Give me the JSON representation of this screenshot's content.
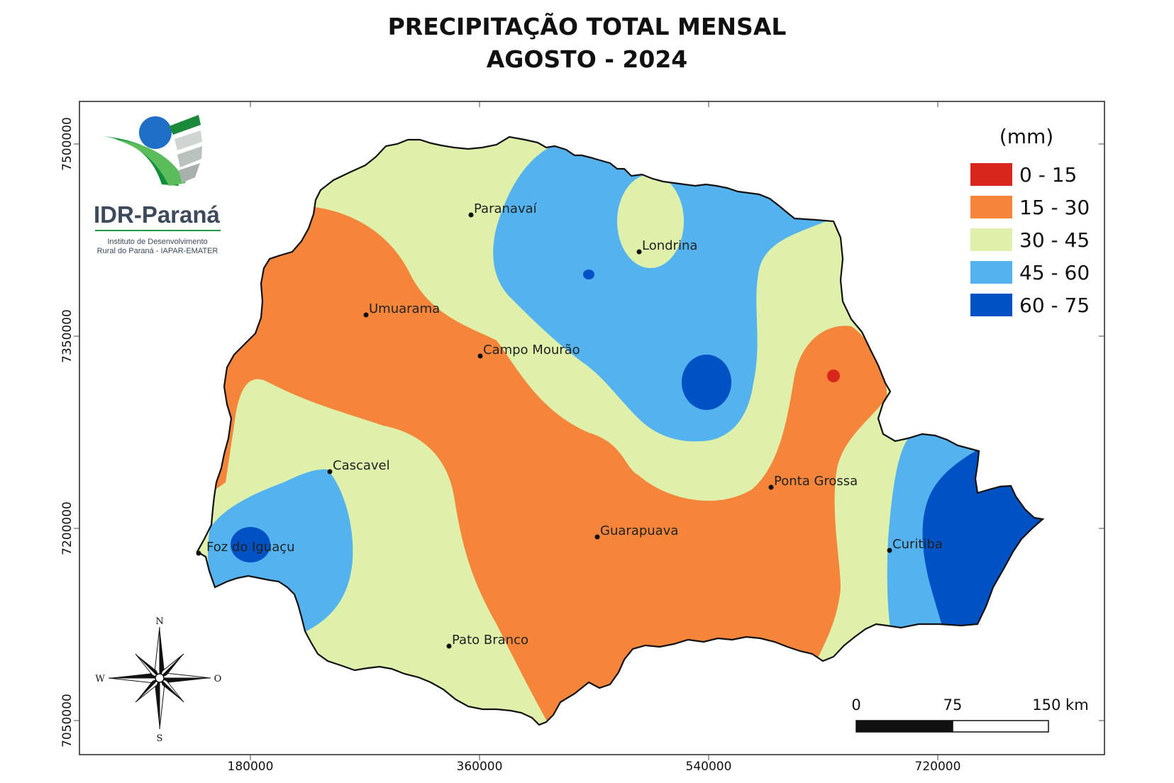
{
  "title": {
    "line1": "PRECIPITAÇÃO TOTAL MENSAL",
    "line2": "AGOSTO - 2024"
  },
  "logo": {
    "name": "IDR-Paraná",
    "subtitle_line1": "Instituto de Desenvolvimento",
    "subtitle_line2": "Rural do Paraná - IAPAR-EMATER"
  },
  "legend": {
    "unit": "(mm)",
    "classes": [
      {
        "label": "0 - 15",
        "color": "#d9261c"
      },
      {
        "label": "15 - 30",
        "color": "#f4853b"
      },
      {
        "label": "30 - 45",
        "color": "#dff0ab"
      },
      {
        "label": "45 - 60",
        "color": "#54b3ef"
      },
      {
        "label": "60 - 75",
        "color": "#0052c4"
      }
    ]
  },
  "axes": {
    "x_ticks": [
      "180000",
      "360000",
      "540000",
      "720000"
    ],
    "y_ticks": [
      "7500000",
      "7350000",
      "7200000",
      "7050000"
    ]
  },
  "cities": [
    {
      "name": "Paranavaí"
    },
    {
      "name": "Londrina"
    },
    {
      "name": "Umuarama"
    },
    {
      "name": "Campo Mourão"
    },
    {
      "name": "Cascavel"
    },
    {
      "name": "Ponta Grossa"
    },
    {
      "name": "Guarapuava"
    },
    {
      "name": "Foz do Iguaçu"
    },
    {
      "name": "Curitiba"
    },
    {
      "name": "Pato Branco"
    }
  ],
  "compass": {
    "n": "N",
    "s": "S",
    "w": "W",
    "e": "O"
  },
  "scale_bar": {
    "labels": [
      "0",
      "75",
      "150 km"
    ]
  }
}
